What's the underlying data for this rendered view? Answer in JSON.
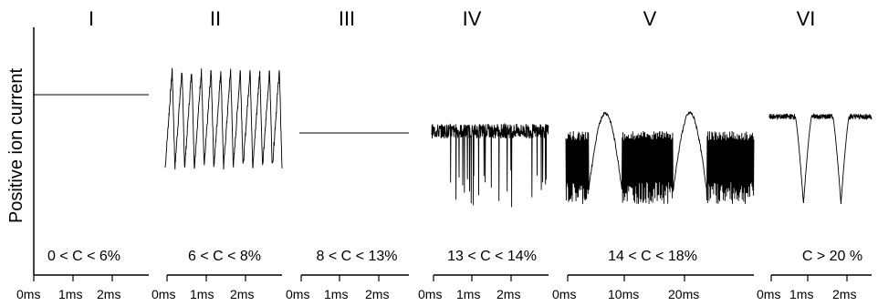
{
  "chart_data": {
    "type": "line",
    "ylabel": "Positive ion current",
    "panels": [
      {
        "regime": "I",
        "condition": "0 < C < 6%",
        "x_ticks": [
          "0ms",
          "1ms",
          "2ms"
        ],
        "tick_values": [
          0,
          1,
          2
        ],
        "xlim": [
          0,
          3
        ],
        "signal": {
          "kind": "flat",
          "level": 0.78
        }
      },
      {
        "regime": "II",
        "condition": "6 < C < 8%",
        "x_ticks": [
          "0ms",
          "1ms",
          "2ms"
        ],
        "tick_values": [
          0,
          1,
          2
        ],
        "xlim": [
          0,
          3
        ],
        "signal": {
          "kind": "sawtooth",
          "cycles": 12,
          "high": 0.92,
          "low": 0.38,
          "jitter": 0.04
        }
      },
      {
        "regime": "III",
        "condition": "8 < C < 13%",
        "x_ticks": [
          "0ms",
          "1ms",
          "2ms"
        ],
        "tick_values": [
          0,
          1,
          2
        ],
        "xlim": [
          0,
          3
        ],
        "signal": {
          "kind": "flat",
          "level": 0.57
        }
      },
      {
        "regime": "IV",
        "condition": "13 < C < 14%",
        "x_ticks": [
          "0ms",
          "1ms",
          "2ms"
        ],
        "tick_values": [
          0,
          1,
          2
        ],
        "xlim": [
          0,
          3
        ],
        "signal": {
          "kind": "noisy",
          "level": 0.58,
          "amp": 0.08,
          "spike_depth": 0.42
        }
      },
      {
        "regime": "V",
        "condition": "14 < C < 18%",
        "x_ticks": [
          "0ms",
          "10ms",
          "20ms"
        ],
        "tick_values": [
          0,
          10,
          20
        ],
        "xlim": [
          0,
          28
        ],
        "signal": {
          "kind": "burst",
          "hump_top": 0.68,
          "osc_high": 0.58,
          "osc_low": 0.18
        }
      },
      {
        "regime": "VI",
        "condition": "C > 20 %",
        "x_ticks": [
          "0ms",
          "1ms",
          "2ms"
        ],
        "tick_values": [
          0,
          1,
          2
        ],
        "xlim": [
          0,
          3
        ],
        "signal": {
          "kind": "dips",
          "level": 0.66,
          "dip_low": 0.18,
          "dip_times": [
            1.0,
            2.1
          ]
        }
      }
    ]
  }
}
